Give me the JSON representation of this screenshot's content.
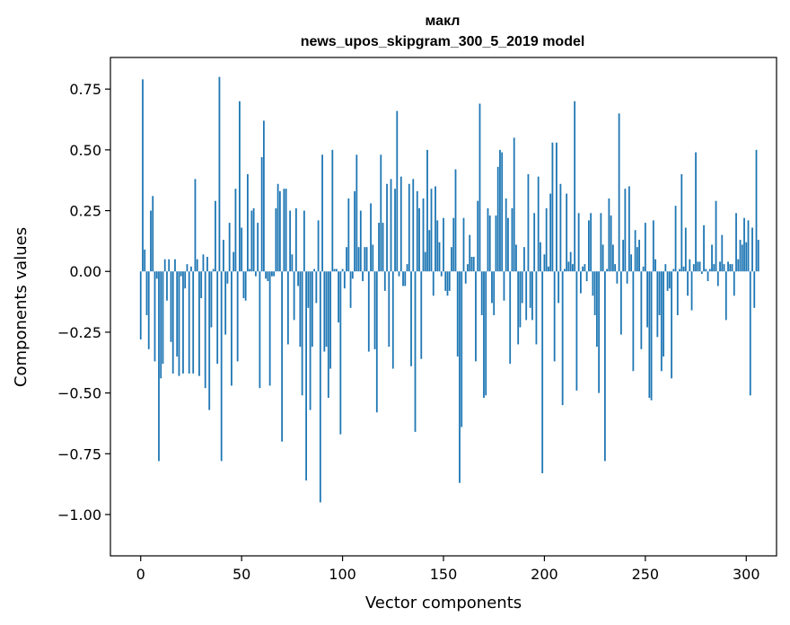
{
  "chart_data": {
    "type": "bar",
    "title_line1": "макл",
    "title_line2": "news_upos_skipgram_300_5_2019 model",
    "xlabel": "Vector components",
    "ylabel": "Components values",
    "xlim": [
      -15,
      315
    ],
    "ylim": [
      -1.17,
      0.88
    ],
    "xticks": [
      0,
      50,
      100,
      150,
      200,
      250,
      300
    ],
    "xtick_labels": [
      "0",
      "50",
      "100",
      "150",
      "200",
      "250",
      "300"
    ],
    "yticks": [
      0.75,
      0.5,
      0.25,
      0.0,
      -0.25,
      -0.5,
      -0.75,
      -1.0
    ],
    "ytick_labels": [
      "0.75",
      "0.50",
      "0.25",
      "0.00",
      "−0.25",
      "−0.50",
      "−0.75",
      "−1.00"
    ],
    "bar_color": "#1f77b4",
    "x_start": 0,
    "values": [
      -0.28,
      0.79,
      0.09,
      -0.18,
      -0.32,
      0.25,
      0.31,
      -0.37,
      -0.03,
      -0.78,
      -0.44,
      -0.38,
      0.05,
      -0.12,
      0.05,
      -0.29,
      -0.42,
      0.05,
      -0.35,
      -0.43,
      -0.02,
      -0.42,
      -0.07,
      0.03,
      -0.42,
      0.02,
      -0.42,
      0.38,
      0.05,
      -0.43,
      -0.11,
      0.07,
      -0.48,
      0.06,
      -0.57,
      -0.23,
      0.01,
      0.29,
      -0.38,
      0.8,
      -0.78,
      0.13,
      -0.26,
      -0.05,
      0.2,
      -0.47,
      0.08,
      0.34,
      -0.37,
      0.7,
      0.18,
      -0.11,
      -0.12,
      0.4,
      0.01,
      0.25,
      0.26,
      -0.02,
      0.2,
      -0.48,
      0.47,
      0.62,
      -0.03,
      -0.04,
      -0.47,
      -0.02,
      -0.02,
      0.26,
      0.36,
      0.33,
      -0.7,
      0.34,
      0.34,
      -0.3,
      0.25,
      0.07,
      -0.2,
      0.26,
      -0.06,
      -0.31,
      -0.51,
      0.25,
      -0.86,
      -0.15,
      -0.57,
      -0.31,
      0.01,
      -0.13,
      0.21,
      -0.95,
      0.48,
      -0.33,
      -0.31,
      -0.52,
      -0.4,
      0.5,
      0.01,
      0.01,
      -0.21,
      -0.67,
      0.01,
      -0.07,
      0.1,
      0.3,
      -0.15,
      -0.03,
      0.33,
      0.48,
      0.1,
      0.25,
      -0.04,
      0.1,
      0.1,
      -0.33,
      0.28,
      0.11,
      -0.32,
      -0.58,
      0.2,
      0.48,
      0.2,
      -0.08,
      0.36,
      -0.31,
      0.38,
      -0.4,
      0.34,
      0.66,
      -0.02,
      0.39,
      -0.06,
      -0.06,
      0.03,
      0.36,
      -0.39,
      0.38,
      -0.66,
      0.33,
      0.26,
      -0.36,
      0.3,
      0.08,
      0.5,
      0.17,
      0.34,
      -0.1,
      0.35,
      0.21,
      0.12,
      -0.02,
      0.22,
      -0.08,
      -0.1,
      -0.08,
      0.1,
      0.22,
      0.42,
      -0.35,
      -0.87,
      -0.64,
      0.22,
      -0.05,
      0.03,
      0.15,
      0.06,
      0.06,
      -0.37,
      0.29,
      0.69,
      -0.18,
      -0.52,
      -0.51,
      0.26,
      0.23,
      -0.13,
      -0.18,
      0.23,
      0.43,
      0.5,
      0.49,
      -0.12,
      0.3,
      0.22,
      -0.38,
      0.26,
      0.55,
      0.11,
      -0.3,
      -0.23,
      -0.13,
      0.1,
      -0.2,
      0.4,
      -0.15,
      -0.2,
      0.24,
      -0.3,
      0.39,
      0.12,
      -0.83,
      0.07,
      0.26,
      0.02,
      0.32,
      0.53,
      -0.37,
      0.53,
      -0.13,
      0.36,
      -0.55,
      0.01,
      0.32,
      0.04,
      0.08,
      0.03,
      0.7,
      -0.49,
      0.24,
      -0.09,
      0.02,
      0.03,
      -0.04,
      0.21,
      0.24,
      -0.1,
      -0.18,
      -0.31,
      -0.5,
      0.24,
      0.11,
      -0.78,
      0.01,
      0.3,
      0.23,
      0.11,
      0.03,
      -0.05,
      0.65,
      -0.26,
      0.13,
      0.34,
      -0.05,
      0.35,
      0.07,
      -0.41,
      0.17,
      0.1,
      0.13,
      -0.32,
      0.02,
      0.2,
      -0.23,
      -0.52,
      -0.53,
      0.21,
      0.05,
      -0.27,
      -0.18,
      -0.41,
      -0.35,
      0.03,
      -0.08,
      -0.07,
      -0.44,
      0.01,
      0.27,
      -0.18,
      0.01,
      0.4,
      0.02,
      0.18,
      -0.1,
      0.05,
      -0.16,
      0.03,
      0.49,
      0.04,
      0.04,
      -0.01,
      0.19,
      0.01,
      -0.04,
      0.01,
      0.11,
      0.03,
      0.29,
      -0.06,
      0.04,
      0.15,
      0.03,
      -0.2,
      0.04,
      0.03,
      0.03,
      -0.1,
      0.24,
      0.05,
      0.13,
      0.11,
      0.22,
      0.12,
      0.21,
      -0.51,
      0.18,
      -0.15,
      0.5,
      0.13
    ]
  }
}
